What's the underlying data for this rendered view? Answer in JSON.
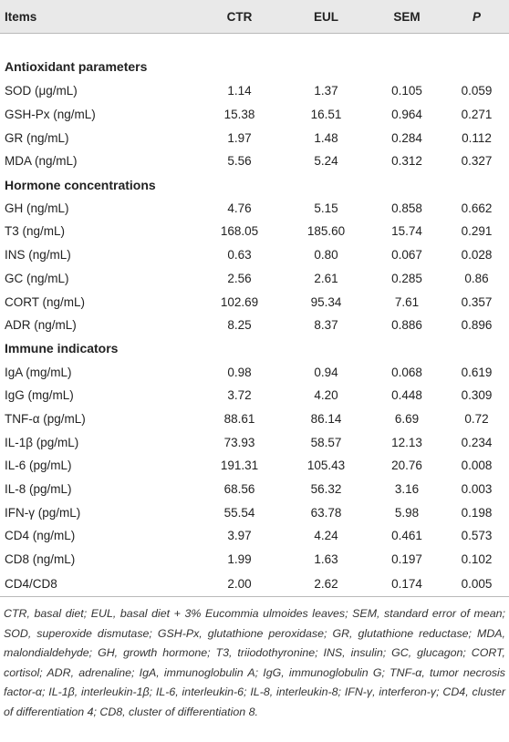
{
  "table": {
    "header": [
      "Items",
      "CTR",
      "EUL",
      "SEM",
      "P"
    ],
    "sections": [
      {
        "title": "Antioxidant parameters",
        "rows": [
          [
            "SOD (μg/mL)",
            "1.14",
            "1.37",
            "0.105",
            "0.059"
          ],
          [
            "GSH-Px (ng/mL)",
            "15.38",
            "16.51",
            "0.964",
            "0.271"
          ],
          [
            "GR (ng/mL)",
            "1.97",
            "1.48",
            "0.284",
            "0.112"
          ],
          [
            "MDA (ng/mL)",
            "5.56",
            "5.24",
            "0.312",
            "0.327"
          ]
        ]
      },
      {
        "title": "Hormone concentrations",
        "rows": [
          [
            "GH (ng/mL)",
            "4.76",
            "5.15",
            "0.858",
            "0.662"
          ],
          [
            "T3 (ng/mL)",
            "168.05",
            "185.60",
            "15.74",
            "0.291"
          ],
          [
            "INS (ng/mL)",
            "0.63",
            "0.80",
            "0.067",
            "0.028"
          ],
          [
            "GC (ng/mL)",
            "2.56",
            "2.61",
            "0.285",
            "0.86"
          ],
          [
            "CORT (ng/mL)",
            "102.69",
            "95.34",
            "7.61",
            "0.357"
          ],
          [
            "ADR (ng/mL)",
            "8.25",
            "8.37",
            "0.886",
            "0.896"
          ]
        ]
      },
      {
        "title": "Immune indicators",
        "rows": [
          [
            "IgA (mg/mL)",
            "0.98",
            "0.94",
            "0.068",
            "0.619"
          ],
          [
            "IgG (mg/mL)",
            "3.72",
            "4.20",
            "0.448",
            "0.309"
          ],
          [
            "TNF-α (pg/mL)",
            "88.61",
            "86.14",
            "6.69",
            "0.72"
          ],
          [
            "IL-1β (pg/mL)",
            "73.93",
            "58.57",
            "12.13",
            "0.234"
          ],
          [
            "IL-6 (pg/mL)",
            "191.31",
            "105.43",
            "20.76",
            "0.008"
          ],
          [
            "IL-8 (pg/mL)",
            "68.56",
            "56.32",
            "3.16",
            "0.003"
          ],
          [
            "IFN-γ (pg/mL)",
            "55.54",
            "63.78",
            "5.98",
            "0.198"
          ],
          [
            "CD4 (ng/mL)",
            "3.97",
            "4.24",
            "0.461",
            "0.573"
          ],
          [
            "CD8 (ng/mL)",
            "1.99",
            "1.63",
            "0.197",
            "0.102"
          ],
          [
            "CD4/CD8",
            "2.00",
            "2.62",
            "0.174",
            "0.005"
          ]
        ]
      }
    ]
  },
  "footnote": "CTR, basal diet; EUL, basal diet + 3% Eucommia ulmoides leaves; SEM, standard error of mean; SOD, superoxide dismutase; GSH-Px, glutathione peroxidase; GR, glutathione reductase; MDA, malondialdehyde; GH, growth hormone; T3, triiodothyronine; INS, insulin; GC, glucagon; CORT, cortisol; ADR, adrenaline; IgA, immunoglobulin A; IgG, immunoglobulin G; TNF-α, tumor necrosis factor-α; IL-1β, interleukin-1β; IL-6, interleukin-6; IL-8, interleukin-8; IFN-γ, interferon-γ; CD4, cluster of differentiation 4; CD8, cluster of differentiation 8."
}
